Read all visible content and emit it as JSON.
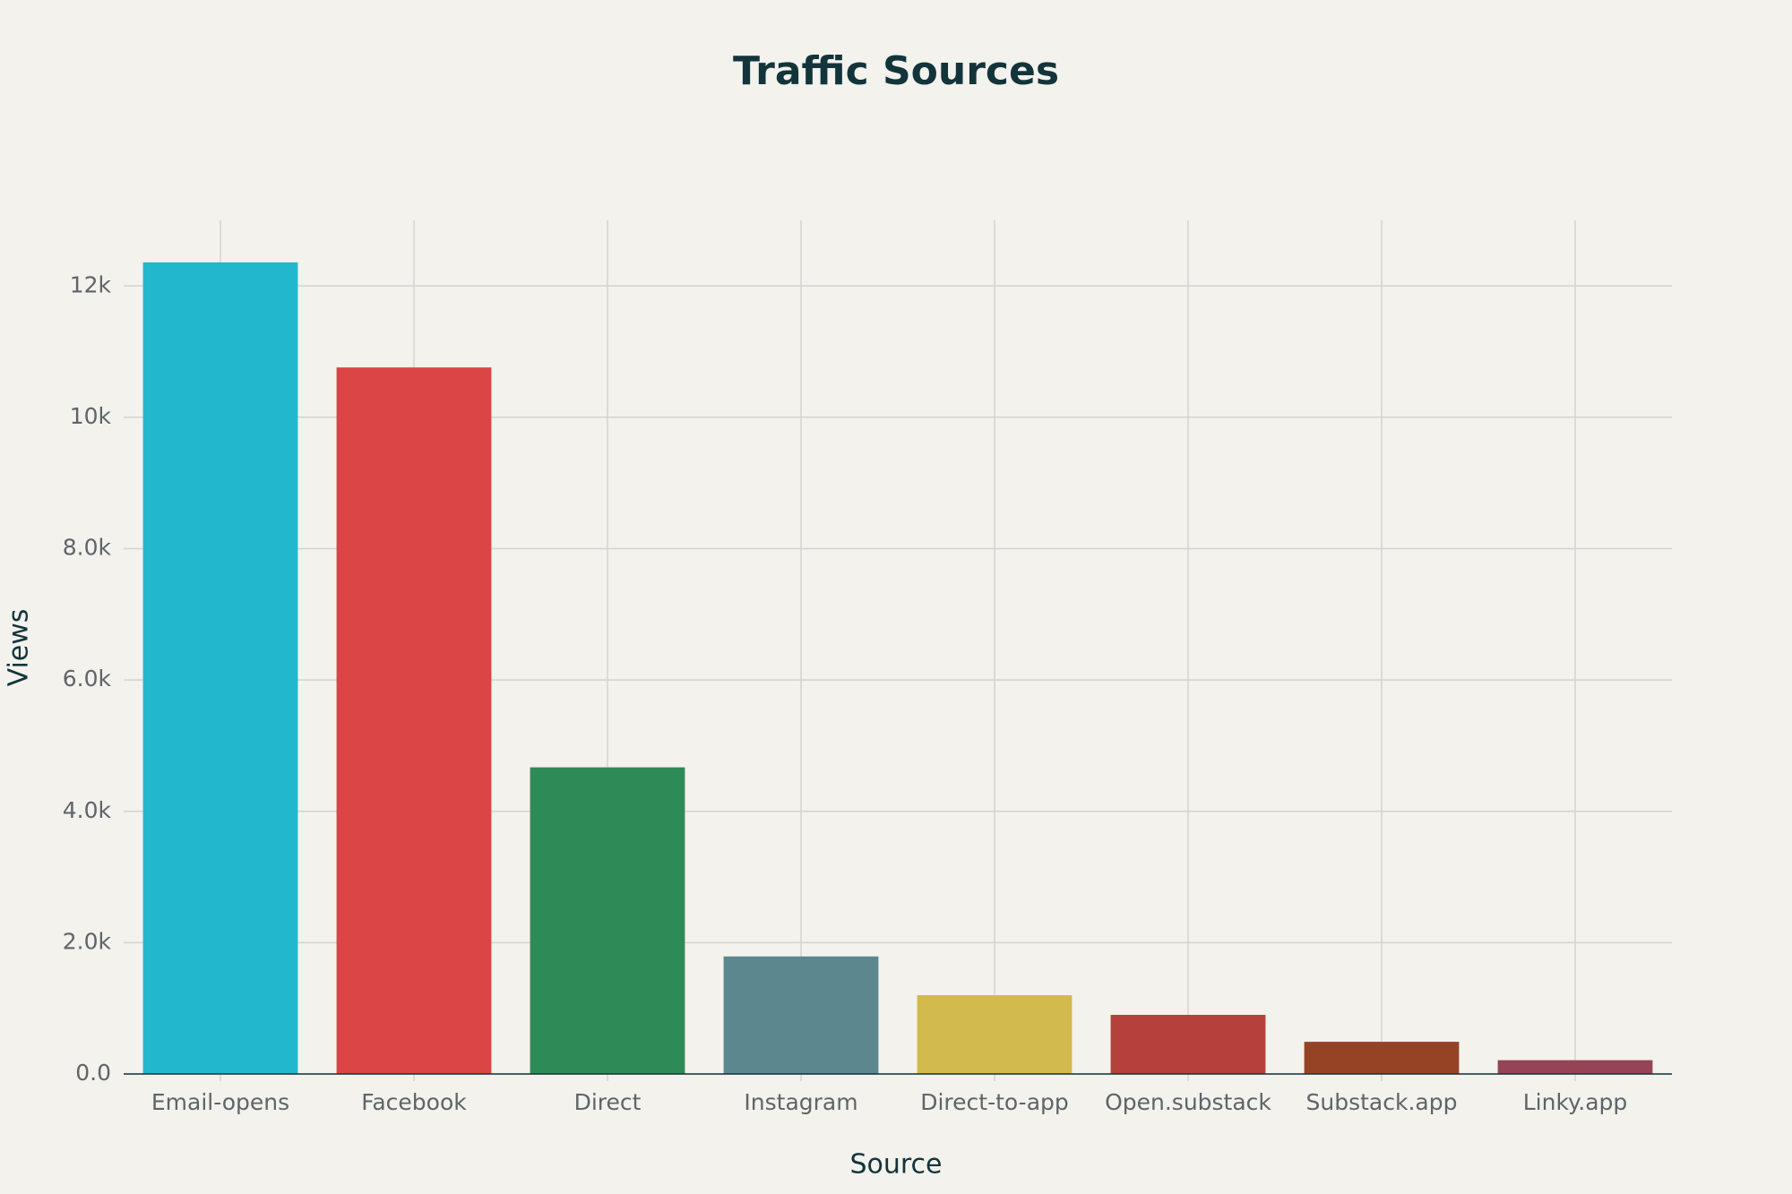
{
  "chart_data": {
    "type": "bar",
    "title": "Traffic Sources",
    "x_label": "Source",
    "y_label": "Views",
    "categories": [
      "Email-opens",
      "Facebook",
      "Direct",
      "Instagram",
      "Direct-to-app",
      "Open.substack",
      "Substack.app",
      "Linky.app"
    ],
    "values": [
      12360,
      10760,
      4670,
      1790,
      1200,
      900,
      490,
      210
    ],
    "colors": [
      "#21b8cd",
      "#db4545",
      "#2e8b57",
      "#5d878f",
      "#d2ba4c",
      "#b4413c",
      "#964325",
      "#944454"
    ],
    "ylim": [
      0,
      13000
    ],
    "yticks": [
      {
        "value": 0,
        "label": "0.0"
      },
      {
        "value": 2000,
        "label": "2.0k"
      },
      {
        "value": 4000,
        "label": "4.0k"
      },
      {
        "value": 6000,
        "label": "6.0k"
      },
      {
        "value": 8000,
        "label": "8.0k"
      },
      {
        "value": 10000,
        "label": "10k"
      },
      {
        "value": 12000,
        "label": "12k"
      }
    ],
    "grid": true
  }
}
